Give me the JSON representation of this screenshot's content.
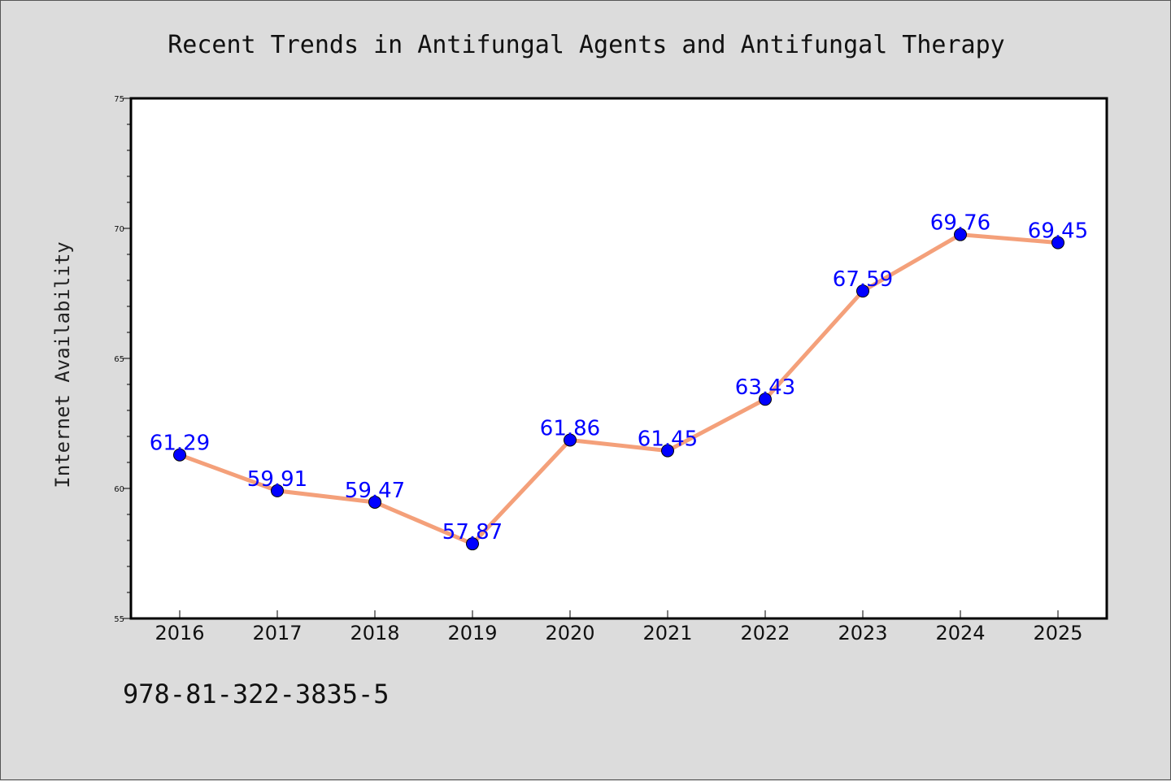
{
  "footer_code": "978-81-322-3835-5",
  "colors": {
    "background": "#dcdcdc",
    "plot_background": "#ffffff",
    "line": "#f4a07a",
    "marker": "#0000ff",
    "data_label": "#0000ff"
  },
  "chart_data": {
    "type": "line",
    "title": "Recent Trends in Antifungal Agents and Antifungal Therapy",
    "xlabel": "",
    "ylabel": "Internet Availability",
    "x": [
      "2016",
      "2017",
      "2018",
      "2019",
      "2020",
      "2021",
      "2022",
      "2023",
      "2024",
      "2025"
    ],
    "series": [
      {
        "values": [
          61.29,
          59.91,
          59.47,
          57.87,
          61.86,
          61.45,
          63.43,
          67.59,
          69.76,
          69.45
        ],
        "labels": [
          "61.29",
          "59.91",
          "59.47",
          "57.87",
          "61.86",
          "61.45",
          "63.43",
          "67.59",
          "69.76",
          "69.45"
        ]
      }
    ],
    "ylim": [
      55,
      75
    ],
    "yticks": [
      "55",
      "60",
      "65",
      "70",
      "75"
    ],
    "y_minor_step": 1,
    "grid": false,
    "legend": false
  }
}
